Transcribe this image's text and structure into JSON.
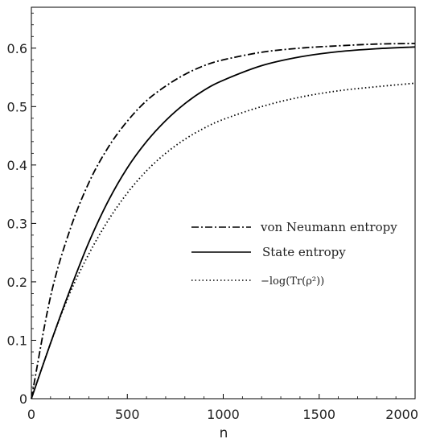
{
  "chart_data": {
    "type": "line",
    "title": "",
    "xlabel": "n",
    "ylabel": "",
    "xlim": [
      0,
      2000
    ],
    "ylim": [
      0,
      0.67
    ],
    "x_ticks": [
      0,
      500,
      1000,
      1500,
      2000
    ],
    "x_tick_labels": [
      "0",
      "500",
      "1000",
      "1500",
      "2000"
    ],
    "y_ticks": [
      0,
      0.1,
      0.2,
      0.3,
      0.4,
      0.5,
      0.6
    ],
    "y_tick_labels": [
      "0",
      "0.1",
      "0.2",
      "0.3",
      "0.4",
      "0.5",
      "0.6"
    ],
    "grid": false,
    "legend_position": "right-middle",
    "series": [
      {
        "name": "von Neumann entropy",
        "style": "dashdot",
        "color": "#000000",
        "x": [
          0,
          100,
          200,
          300,
          400,
          500,
          600,
          700,
          800,
          900,
          1000,
          1200,
          1400,
          1600,
          1800,
          2000
        ],
        "y": [
          0,
          0.175,
          0.288,
          0.37,
          0.43,
          0.475,
          0.51,
          0.535,
          0.555,
          0.57,
          0.58,
          0.593,
          0.6,
          0.604,
          0.607,
          0.608
        ]
      },
      {
        "name": "State entropy",
        "style": "solid",
        "color": "#000000",
        "x": [
          0,
          100,
          200,
          300,
          400,
          500,
          600,
          700,
          800,
          900,
          1000,
          1200,
          1400,
          1600,
          1800,
          2000
        ],
        "y": [
          0,
          0.095,
          0.185,
          0.268,
          0.338,
          0.395,
          0.44,
          0.476,
          0.505,
          0.528,
          0.545,
          0.57,
          0.585,
          0.594,
          0.599,
          0.602
        ]
      },
      {
        "name": "−log(Tr(ρ²))",
        "style": "dotted",
        "color": "#000000",
        "x": [
          0,
          100,
          200,
          300,
          400,
          500,
          600,
          700,
          800,
          900,
          1000,
          1200,
          1400,
          1600,
          1800,
          2000
        ],
        "y": [
          0,
          0.095,
          0.18,
          0.248,
          0.305,
          0.352,
          0.39,
          0.42,
          0.444,
          0.463,
          0.478,
          0.5,
          0.516,
          0.527,
          0.534,
          0.54
        ]
      }
    ],
    "legend": {
      "entries": [
        "von Neumann entropy",
        "State entropy",
        "−log(Tr(ρ²))"
      ]
    }
  }
}
